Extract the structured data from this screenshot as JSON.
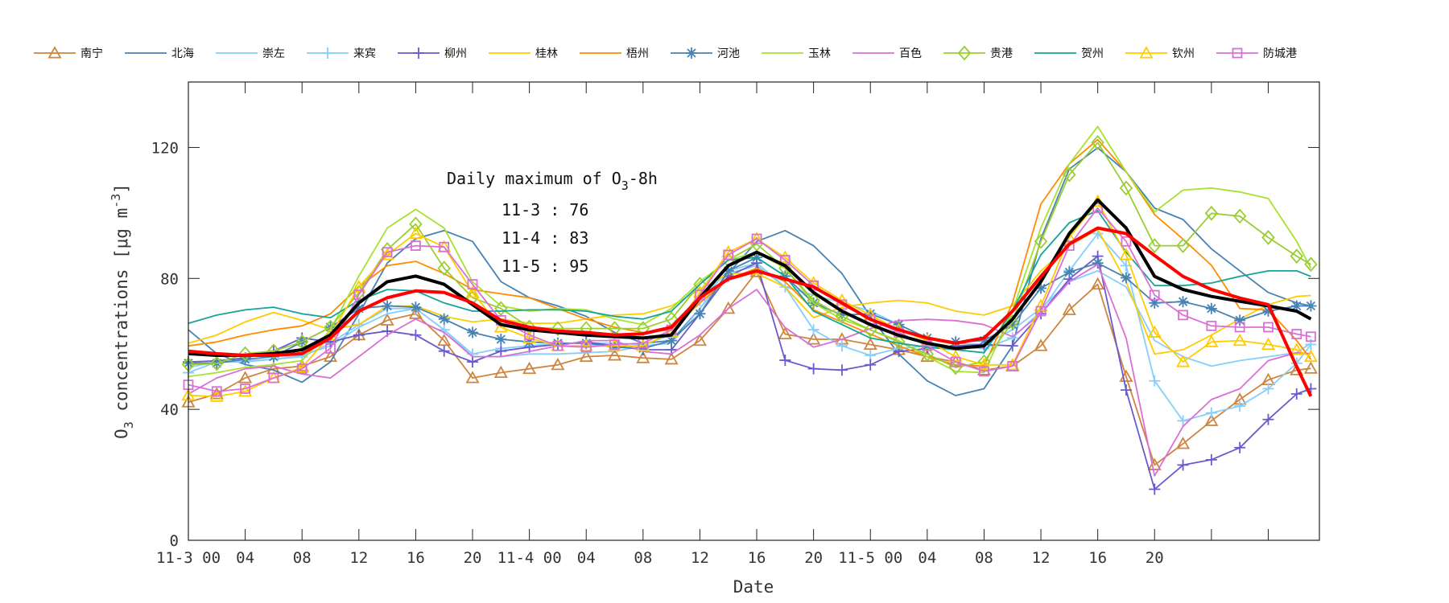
{
  "chart_data": {
    "type": "line",
    "xlabel": "Date",
    "ylabel": "O3 concentrations [μg m-3]",
    "ylabel_parts": {
      "base": "O",
      "sub": "3",
      "mid": " concentrations [μg m",
      "sup": "-3",
      "end": "]"
    },
    "ylim": [
      0,
      140
    ],
    "yticks": [
      0,
      40,
      80,
      120
    ],
    "xlim": [
      "11-3 00",
      "11-6 07"
    ],
    "x_tick_labels": [
      "11-3 00",
      "04",
      "08",
      "12",
      "16",
      "20",
      "11-4 00",
      "04",
      "08",
      "12",
      "16",
      "20",
      "11-5 00",
      "04",
      "08",
      "12",
      "16",
      "20"
    ],
    "x_tick_positions": [
      "11-3 00",
      "11-3 04",
      "11-3 08",
      "11-3 12",
      "11-3 16",
      "11-3 20",
      "11-4 00",
      "11-4 04",
      "11-4 08",
      "11-4 12",
      "11-4 16",
      "11-4 20",
      "11-5 00",
      "11-5 04",
      "11-5 08",
      "11-5 12",
      "11-5 16",
      "11-5 20",
      "11-6 00",
      "11-6 04"
    ],
    "grid": false,
    "legend_position": "top",
    "annotation": {
      "title": {
        "base": "Daily maximum of O",
        "sub": "3",
        "end": "-8h"
      },
      "lines": [
        "11-3 : 76",
        "11-4 : 83",
        "11-5 : 95"
      ]
    },
    "x": [
      "11-3 00",
      "11-3 02",
      "11-3 04",
      "11-3 06",
      "11-3 08",
      "11-3 10",
      "11-3 12",
      "11-3 14",
      "11-3 16",
      "11-3 18",
      "11-3 20",
      "11-3 22",
      "11-4 00",
      "11-4 02",
      "11-4 04",
      "11-4 06",
      "11-4 08",
      "11-4 10",
      "11-4 12",
      "11-4 14",
      "11-4 16",
      "11-4 18",
      "11-4 20",
      "11-4 22",
      "11-5 00",
      "11-5 02",
      "11-5 04",
      "11-5 06",
      "11-5 08",
      "11-5 10",
      "11-5 12",
      "11-5 14",
      "11-5 16",
      "11-5 18",
      "11-5 20",
      "11-5 22",
      "11-6 00",
      "11-6 02",
      "11-6 04",
      "11-6 06",
      "11-6 07"
    ],
    "series": [
      {
        "name": "南宁",
        "color": "#cd853f",
        "marker": "triangle",
        "values": [
          42.2,
          44.7,
          49.6,
          52.4,
          53.2,
          56.1,
          62.7,
          67.2,
          69.2,
          61,
          49.6,
          51.2,
          52.4,
          53.6,
          56.1,
          56.5,
          55.7,
          55.3,
          61,
          70.8,
          82,
          63,
          61.4,
          61.4,
          59.8,
          58.2,
          56.1,
          54.5,
          52,
          53.2,
          59.4,
          70.4,
          78.2,
          50,
          23,
          29.5,
          36.5,
          43,
          49,
          52,
          52.5
        ]
      },
      {
        "name": "北海",
        "color": "#4682b4",
        "marker": "none",
        "values": [
          64.3,
          57,
          53.7,
          52,
          48.3,
          54.5,
          69.2,
          84.7,
          92.1,
          94.6,
          91.3,
          79,
          74.1,
          71.6,
          68.4,
          63.5,
          60.2,
          61,
          70.8,
          81.5,
          91.3,
          94.6,
          90,
          81.5,
          68.4,
          56.9,
          48.7,
          44.2,
          46.3,
          59.4,
          92.1,
          113.4,
          119.9,
          112.6,
          101.5,
          98,
          89,
          82.3,
          75.7,
          72.5,
          71.6
        ]
      },
      {
        "name": "崇左",
        "color": "#87cefa",
        "marker": "none",
        "values": [
          52.8,
          54.5,
          54.5,
          55.3,
          56.5,
          59.4,
          65.1,
          69.2,
          70.8,
          64.3,
          56.1,
          56.1,
          56.9,
          56.9,
          57.3,
          57.7,
          59.4,
          60.2,
          70.8,
          81.5,
          83.9,
          77.4,
          74.9,
          72.5,
          70,
          65.9,
          61.8,
          60.2,
          59.8,
          64.3,
          70.8,
          79,
          82.3,
          77.4,
          61,
          56.1,
          53.2,
          54.9,
          56.1,
          57.3,
          60.2
        ]
      },
      {
        "name": "来宾",
        "color": "#87cefa",
        "marker": "plus",
        "values": [
          51.2,
          54.5,
          54.9,
          55.3,
          56.1,
          60.2,
          65.9,
          70.8,
          70.8,
          64.3,
          56.9,
          58.6,
          59.4,
          60.2,
          60.2,
          60.2,
          59.8,
          62.7,
          73.3,
          82.3,
          84.7,
          77.4,
          64.3,
          59.4,
          56.5,
          58.6,
          59.4,
          59,
          58.6,
          61.8,
          70,
          82.3,
          93.7,
          83.9,
          48.7,
          36.5,
          38.9,
          41,
          46.3,
          54.1,
          59.8
        ]
      },
      {
        "name": "柳州",
        "color": "#6a5acd",
        "marker": "plus",
        "values": [
          54.5,
          54.8,
          55.7,
          57.8,
          61.8,
          60.6,
          62.7,
          63.9,
          62.7,
          57.8,
          54.5,
          57.8,
          59,
          59.8,
          60.6,
          59.4,
          58.2,
          58.2,
          69.2,
          80.7,
          84.7,
          55,
          52.4,
          52,
          53.6,
          57.7,
          58.6,
          59.4,
          59.8,
          59.4,
          69.2,
          79.8,
          86.8,
          45.9,
          15.6,
          23,
          24.6,
          28.3,
          36.9,
          44.7,
          46.3
        ]
      },
      {
        "name": "桂林",
        "color": "#ffcc00",
        "marker": "none",
        "values": [
          60.2,
          62.7,
          66.7,
          69.6,
          67.2,
          64.3,
          65.9,
          71.6,
          71.6,
          68.4,
          66.7,
          67.6,
          66.3,
          66.3,
          67.6,
          68.8,
          69.2,
          71.6,
          76.6,
          81.5,
          81.5,
          77.4,
          68,
          71.2,
          72.5,
          73.3,
          72.5,
          70,
          68.8,
          71.6,
          82.3,
          90,
          95,
          79,
          56.9,
          58.2,
          62.7,
          67.6,
          72,
          74.5,
          74.8
        ]
      },
      {
        "name": "梧州",
        "color": "#ff8c00",
        "marker": "none",
        "values": [
          59.4,
          60.6,
          62.7,
          64.3,
          65.5,
          69.2,
          77.4,
          83.9,
          85.2,
          81.5,
          76.6,
          75.3,
          74.1,
          70.8,
          67.6,
          65.1,
          63.5,
          64.3,
          72.5,
          79.8,
          83.1,
          79,
          70.4,
          66.7,
          63,
          59.4,
          56.1,
          53.6,
          53.2,
          72.5,
          102.7,
          115,
          122.4,
          112.6,
          99.5,
          92,
          84,
          70.8,
          70.4,
          61,
          55.3
        ]
      },
      {
        "name": "河池",
        "color": "#4682b4",
        "marker": "asterisk",
        "values": [
          54.1,
          54.1,
          55.3,
          56.1,
          60.6,
          65.1,
          70.8,
          71.6,
          71.2,
          67.6,
          63.5,
          61.4,
          60.6,
          60.2,
          60.2,
          59,
          58.6,
          61,
          69.2,
          82.3,
          86.4,
          80.7,
          72.5,
          68.8,
          69.2,
          65.9,
          61.8,
          60.6,
          61,
          65.9,
          77,
          81.9,
          84.7,
          80.2,
          72.5,
          72.9,
          70.8,
          67.2,
          70,
          71.6,
          71.6
        ]
      },
      {
        "name": "玉林",
        "color": "#a6e22e",
        "marker": "none",
        "values": [
          50,
          51.2,
          52.8,
          53.7,
          54.9,
          64.3,
          80.7,
          95.4,
          101.1,
          95.4,
          79,
          71.6,
          70,
          70.8,
          70.4,
          67.6,
          65.9,
          70.8,
          79,
          85.6,
          88,
          83.1,
          72.5,
          67.5,
          64.3,
          61,
          56.1,
          51.6,
          51.2,
          70,
          95.4,
          115,
          126.4,
          112.6,
          100.3,
          107,
          107.6,
          106.4,
          104.4,
          91.3,
          83.1
        ]
      },
      {
        "name": "百色",
        "color": "#da70d6",
        "marker": "none",
        "values": [
          44.7,
          49.6,
          52.4,
          53.2,
          50.8,
          49.6,
          56.1,
          62.7,
          67.6,
          63.5,
          56.1,
          56.1,
          57.7,
          59.4,
          61,
          61,
          57.7,
          56.9,
          62.7,
          70.8,
          76.6,
          65,
          59,
          61.4,
          64.7,
          67.1,
          67.5,
          67.1,
          65.9,
          62.2,
          69.2,
          79,
          84.3,
          61.8,
          19.7,
          34.8,
          43,
          46.3,
          54.9,
          57.3,
          57
        ]
      },
      {
        "name": "贵港",
        "color": "#9acd32",
        "marker": "diamond",
        "values": [
          53.7,
          54,
          57,
          57.8,
          60.6,
          65.1,
          75.7,
          88.8,
          96.6,
          83.1,
          74.1,
          70.8,
          65.1,
          64.7,
          64.7,
          64.7,
          64.7,
          67.6,
          78.2,
          85.6,
          90.5,
          83.1,
          73.3,
          68.4,
          64.3,
          60.6,
          56.9,
          52.8,
          54.5,
          66.7,
          91.3,
          111.7,
          121.5,
          107.6,
          90,
          90,
          99.9,
          99,
          92.5,
          86.8,
          84.3
        ]
      },
      {
        "name": "贺州",
        "color": "#17a398",
        "marker": "none",
        "values": [
          66.3,
          68.8,
          70.4,
          71.2,
          69.2,
          68,
          73.3,
          76.6,
          76.2,
          72.5,
          70,
          70,
          70.4,
          70.4,
          70,
          68.4,
          67.6,
          70,
          78.2,
          85.6,
          86.4,
          80.7,
          70,
          65.9,
          61.8,
          60.2,
          59,
          58.2,
          57.3,
          70,
          87.2,
          97,
          100.7,
          88,
          77.8,
          77.8,
          78.6,
          80.6,
          82.3,
          82.3,
          80.6
        ]
      },
      {
        "name": "钦州",
        "color": "#ffcc00",
        "marker": "triangle",
        "values": [
          44.3,
          43.9,
          45.5,
          49.6,
          52.8,
          62.7,
          77.4,
          87.2,
          93.7,
          89.6,
          75.7,
          65.1,
          61.8,
          59.4,
          59.4,
          59.4,
          59.4,
          63.5,
          75.7,
          88,
          92.1,
          86.4,
          78.6,
          73.3,
          68.8,
          64.3,
          61,
          56.1,
          53.6,
          53.6,
          71.6,
          92.5,
          103.5,
          87.2,
          63.5,
          54.5,
          60.6,
          61,
          59.8,
          58.2,
          56.1
        ]
      },
      {
        "name": "防城港",
        "color": "#da70d6",
        "marker": "square",
        "values": [
          47.5,
          45.5,
          46.3,
          49.6,
          52.4,
          58.6,
          75,
          88,
          90,
          89.6,
          78.2,
          67.2,
          62.7,
          59.4,
          59,
          59.8,
          60.2,
          64.3,
          75,
          87.2,
          92.1,
          85.6,
          77.8,
          72,
          67.5,
          63.5,
          59.4,
          54.5,
          51.6,
          53.2,
          70,
          90,
          101.5,
          91.3,
          74.9,
          68.8,
          65.5,
          65.1,
          65.1,
          63,
          62.2
        ]
      },
      {
        "color": "#000000",
        "marker": "none",
        "thick": true,
        "values": [
          57,
          56.5,
          56.5,
          57,
          58.2,
          62.7,
          72.5,
          79,
          80.7,
          78.2,
          72,
          65.9,
          64.3,
          63.5,
          62.7,
          62.2,
          61.8,
          62.7,
          74.1,
          83.9,
          88,
          83.9,
          75.7,
          70,
          65.9,
          62.6,
          60.2,
          58.6,
          59.4,
          67.5,
          79,
          93.7,
          104,
          95.4,
          80.6,
          76.6,
          74.5,
          73,
          71.6,
          70,
          67.6
        ]
      },
      {
        "color": "#ff0000",
        "marker": "none",
        "thick": true,
        "values": [
          57.8,
          57,
          56.5,
          56.5,
          57,
          61.8,
          70,
          74.1,
          76.2,
          75.7,
          72.5,
          67.2,
          65.1,
          63.9,
          63.5,
          62.7,
          63.1,
          65.1,
          74.1,
          79.8,
          82.3,
          79.8,
          77.4,
          72.5,
          67.5,
          64.3,
          61.8,
          60.2,
          61.8,
          70,
          80.6,
          90.5,
          95.4,
          93.7,
          87,
          80.6,
          76.6,
          74,
          72,
          53,
          44
        ]
      }
    ]
  }
}
